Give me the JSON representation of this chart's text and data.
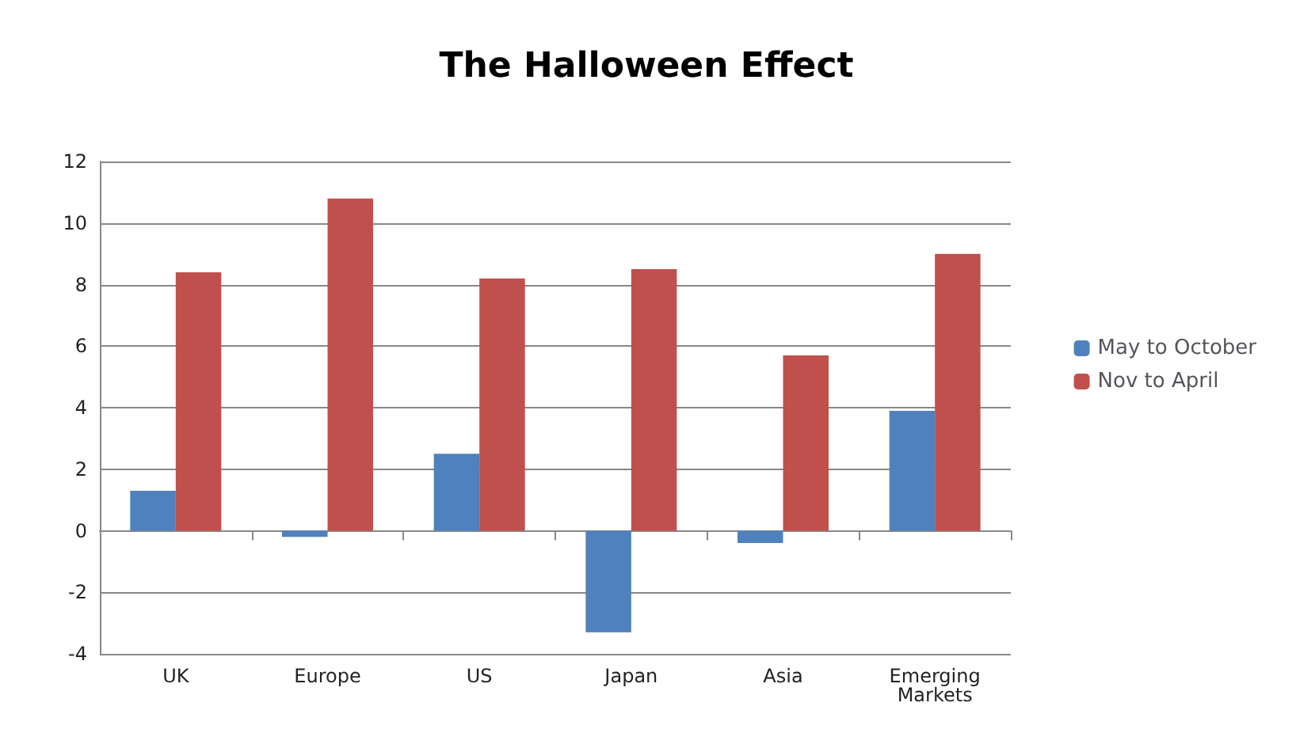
{
  "chart_data": {
    "type": "bar",
    "title": "The Halloween Effect",
    "categories": [
      "UK",
      "Europe",
      "US",
      "Japan",
      "Asia",
      "Emerging\nMarkets"
    ],
    "series": [
      {
        "name": "May to October",
        "color": "#4f81bd",
        "values": [
          1.3,
          -0.2,
          2.5,
          -3.3,
          -0.4,
          3.9
        ]
      },
      {
        "name": "Nov to April",
        "color": "#c0504d",
        "values": [
          8.4,
          10.8,
          8.2,
          8.5,
          5.7,
          9.0
        ]
      }
    ],
    "ylim": [
      -4,
      12
    ],
    "yticks": [
      -4,
      -2,
      0,
      2,
      4,
      6,
      8,
      10,
      12
    ],
    "grid": "y",
    "legend": "right"
  }
}
